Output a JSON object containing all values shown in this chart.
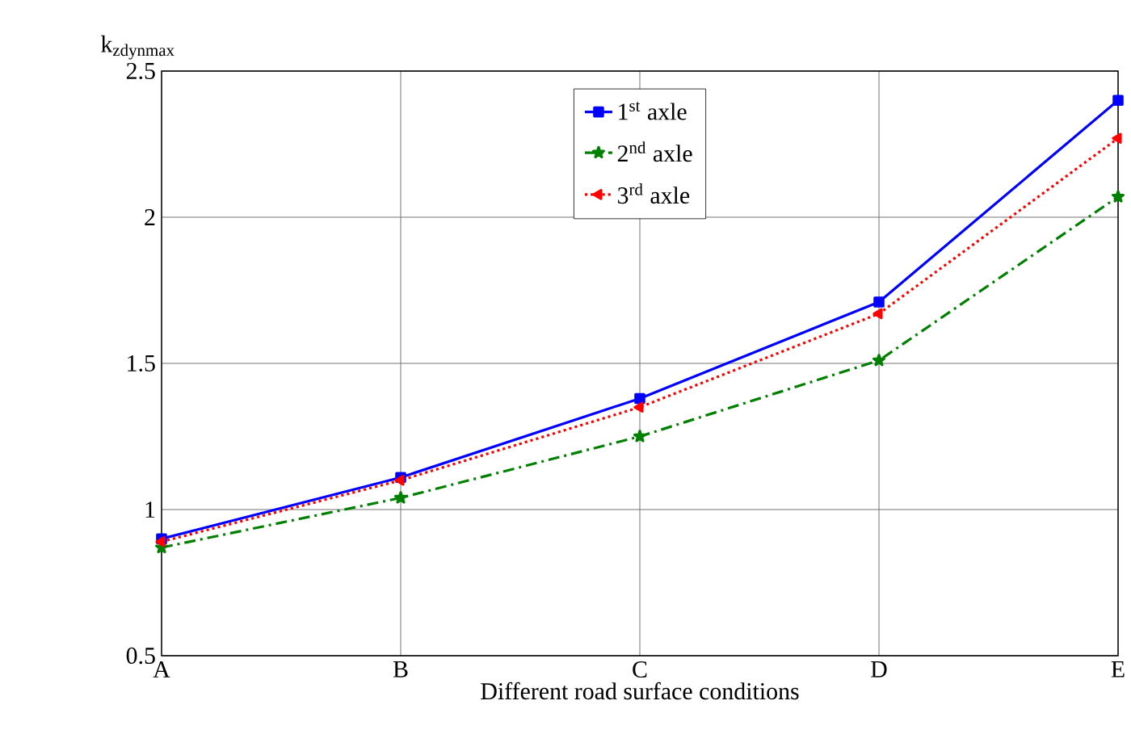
{
  "chart_data": {
    "type": "line",
    "xlabel": "Different road surface conditions",
    "ylabel": "k$_{zdynmax}$",
    "categories": [
      "A",
      "B",
      "C",
      "D",
      "E"
    ],
    "series": [
      {
        "name": "1$^{st}$ axle",
        "color": "#0000ff",
        "marker": "square",
        "line_style": "solid",
        "values": [
          0.9,
          1.11,
          1.38,
          1.71,
          2.4
        ]
      },
      {
        "name": "2$^{nd}$ axle",
        "color": "#008000",
        "marker": "star",
        "line_style": "dashdot",
        "values": [
          0.87,
          1.04,
          1.25,
          1.51,
          2.07
        ]
      },
      {
        "name": "3$^{rd}$ axle",
        "color": "#ff0000",
        "marker": "triangle",
        "line_style": "dotted",
        "values": [
          0.89,
          1.1,
          1.35,
          1.67,
          2.27
        ]
      }
    ],
    "ylim": [
      0.5,
      2.5
    ],
    "yticks": [
      0.5,
      1,
      1.5,
      2,
      2.5
    ],
    "grid": true,
    "legend": "top"
  }
}
